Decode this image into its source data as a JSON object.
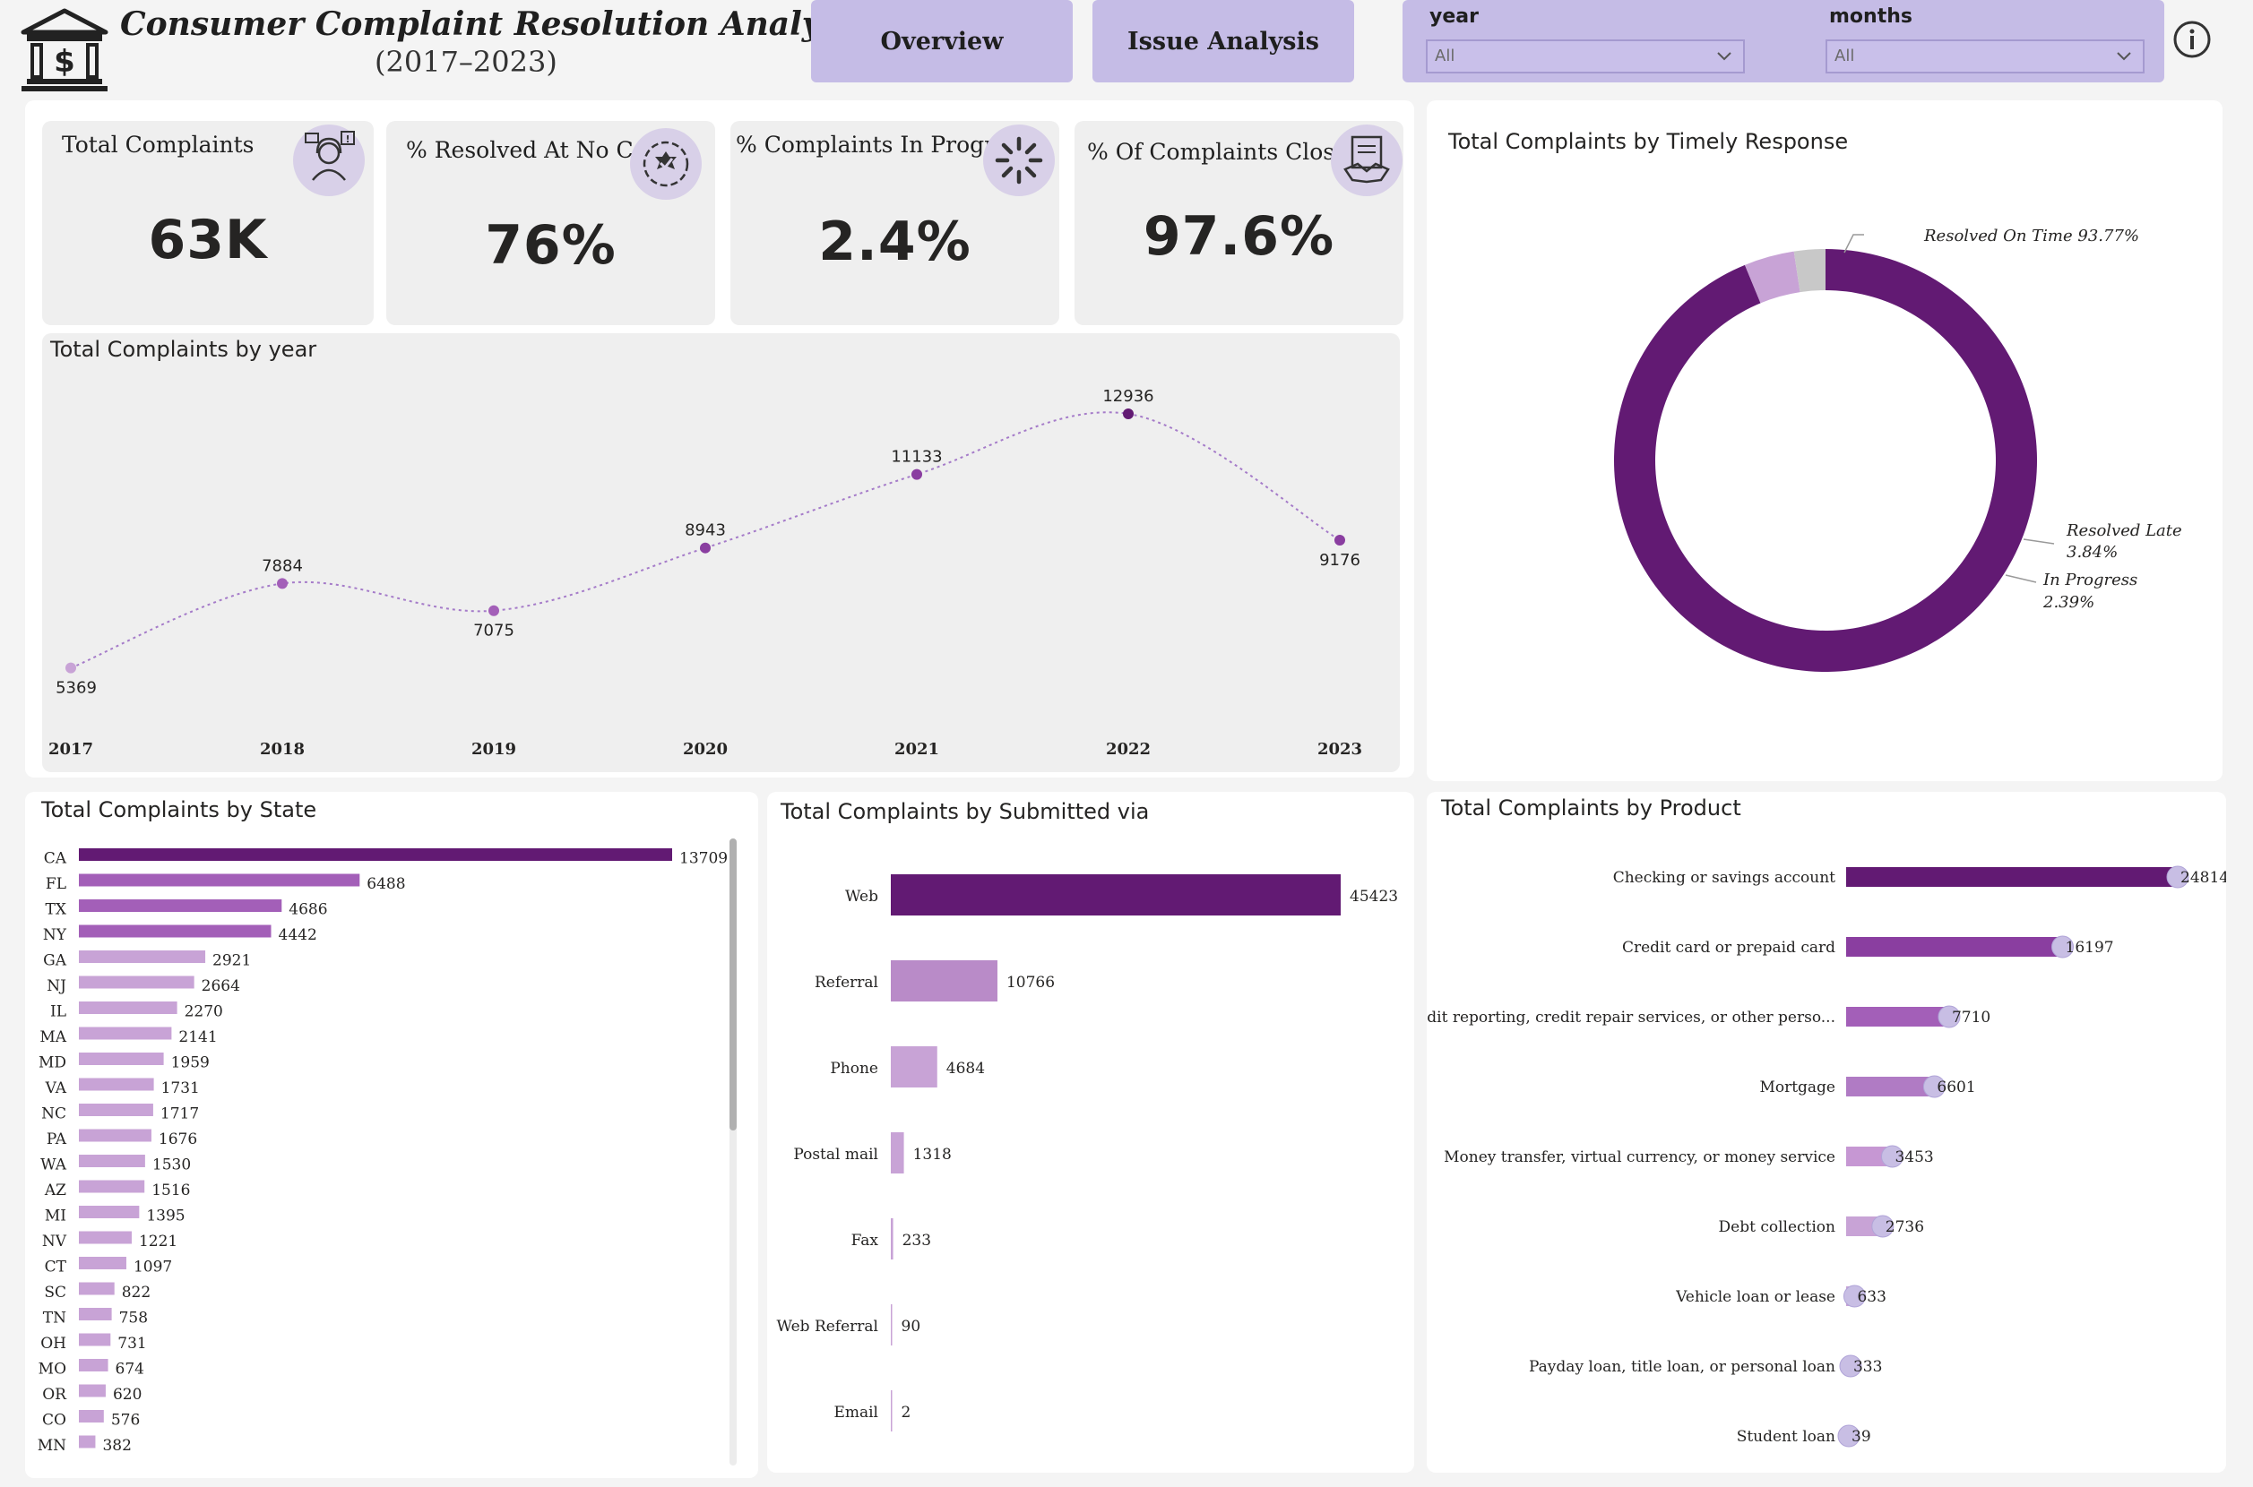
{
  "header": {
    "title": "Consumer Complaint Resolution Analysis",
    "subtitle": "(2017–2023)",
    "nav": [
      "Overview",
      "Issue Analysis"
    ],
    "slicers": [
      {
        "label": "year",
        "value": "All"
      },
      {
        "label": "months",
        "value": "All"
      }
    ]
  },
  "kpis": [
    {
      "title": "Total Complaints",
      "value": "63K",
      "icon": "customer-service-icon"
    },
    {
      "title": "% Resolved At No Cost",
      "value": "76%",
      "icon": "badge-check-icon"
    },
    {
      "title": "% Complaints In Progress",
      "value": "2.4%",
      "icon": "loading-spinner-icon"
    },
    {
      "title": "% Of Complaints Closed",
      "value": "97.6%",
      "icon": "handshake-agreement-icon"
    }
  ],
  "colors": {
    "dark_purple": "#621a73",
    "mid_purple": "#a35fb8",
    "light_purple": "#c8a3d6",
    "gray": "#c8c8c8"
  },
  "chart_data": [
    {
      "type": "line",
      "title": "Total Complaints by year",
      "categories": [
        "2017",
        "2018",
        "2019",
        "2020",
        "2021",
        "2022",
        "2023"
      ],
      "values": [
        5369,
        7884,
        7075,
        8943,
        11133,
        12936,
        9176
      ],
      "labels": [
        "5369",
        "7884",
        "7075",
        "8943",
        "11133",
        "12936",
        "9176"
      ],
      "ylim": [
        4000,
        14000
      ]
    },
    {
      "type": "pie",
      "title": "Total Complaints by Timely Response",
      "categories": [
        "Resolved On Time",
        "Resolved Late",
        "In Progress"
      ],
      "values": [
        93.77,
        3.84,
        2.39
      ],
      "labels": [
        "Resolved On Time 93.77%",
        "Resolved Late",
        "3.84%",
        "In Progress",
        "2.39%"
      ]
    },
    {
      "type": "bar",
      "title": "Total Complaints by State",
      "categories": [
        "CA",
        "FL",
        "TX",
        "NY",
        "GA",
        "NJ",
        "IL",
        "MA",
        "MD",
        "VA",
        "NC",
        "PA",
        "WA",
        "AZ",
        "MI",
        "NV",
        "CT",
        "SC",
        "TN",
        "OH",
        "MO",
        "OR",
        "CO",
        "MN"
      ],
      "values": [
        13709,
        6488,
        4686,
        4442,
        2921,
        2664,
        2270,
        2141,
        1959,
        1731,
        1717,
        1676,
        1530,
        1516,
        1395,
        1221,
        1097,
        822,
        758,
        731,
        674,
        620,
        576,
        382
      ],
      "labels": [
        "13709",
        "6488",
        "4686",
        "4442",
        "2921",
        "2664",
        "2270",
        "2141",
        "1959",
        "1731",
        "1717",
        "1676",
        "1530",
        "1516",
        "1395",
        "1221",
        "1097",
        "822",
        "758",
        "731",
        "674",
        "620",
        "576",
        "382"
      ]
    },
    {
      "type": "bar",
      "title": "Total Complaints by Submitted via",
      "categories": [
        "Web",
        "Referral",
        "Phone",
        "Postal mail",
        "Fax",
        "Web Referral",
        "Email"
      ],
      "values": [
        45423,
        10766,
        4684,
        1318,
        233,
        90,
        2
      ],
      "labels": [
        "45423",
        "10766",
        "4684",
        "1318",
        "233",
        "90",
        "2"
      ]
    },
    {
      "type": "bar",
      "title": "Total Complaints by Product",
      "categories": [
        "Checking or savings account",
        "Credit card or prepaid card",
        "Credit reporting, credit repair services, or other perso...",
        "Mortgage",
        "Money transfer, virtual currency, or money service",
        "Debt collection",
        "Vehicle loan or lease",
        "Payday loan, title loan, or personal loan",
        "Student loan"
      ],
      "values": [
        24814,
        16197,
        7710,
        6601,
        3453,
        2736,
        633,
        333,
        39
      ],
      "labels": [
        "24814",
        "16197",
        "7710",
        "6601",
        "3453",
        "2736",
        "633",
        "333",
        "39"
      ]
    }
  ]
}
